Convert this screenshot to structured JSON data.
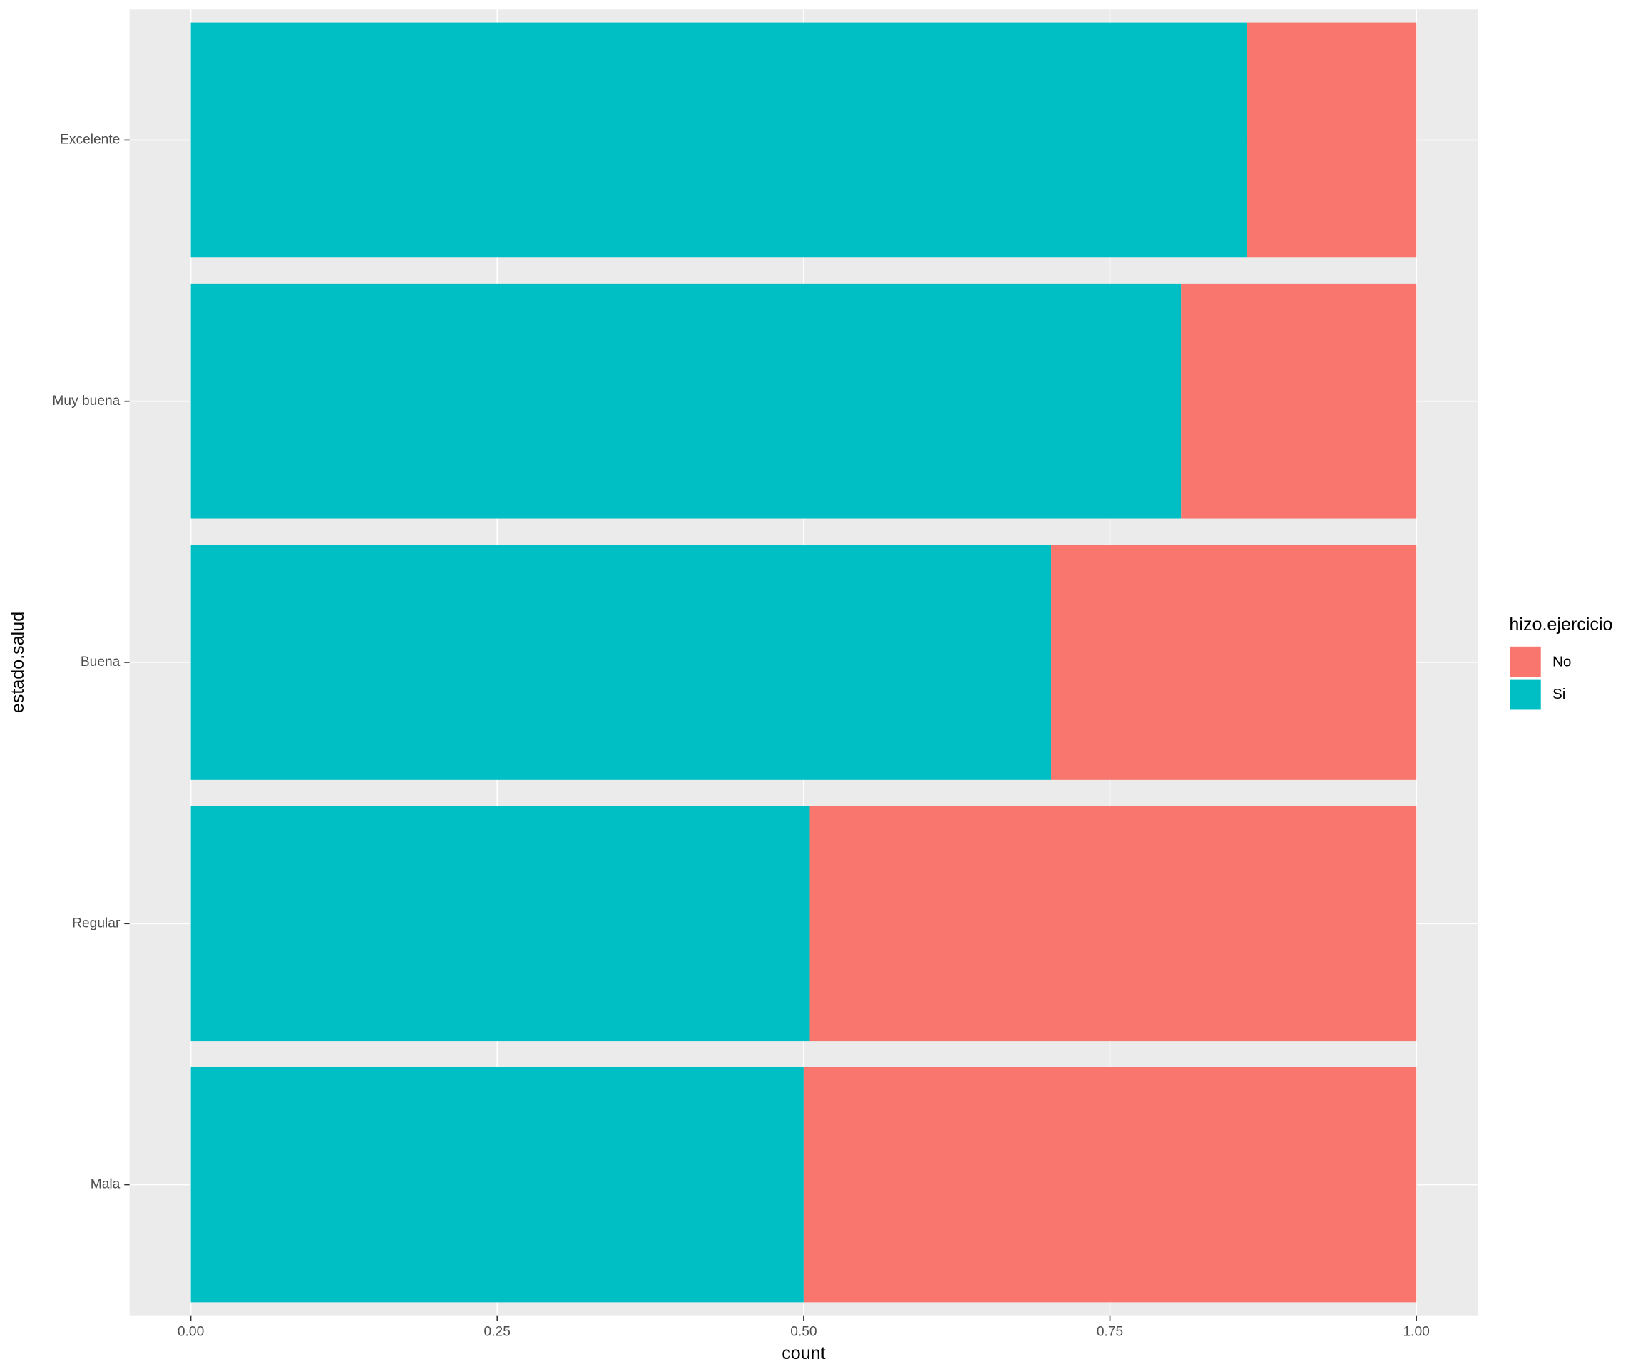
{
  "chart_data": {
    "type": "stacked_bar_horizontal",
    "x_label": "count",
    "y_label": "estado.salud",
    "categories": [
      "Excelente",
      "Muy buena",
      "Buena",
      "Regular",
      "Mala"
    ],
    "series": [
      {
        "name": "No",
        "color": "#f8766d",
        "values": [
          0.138,
          0.192,
          0.298,
          0.495,
          0.5
        ]
      },
      {
        "name": "Si",
        "color": "#00bfc4",
        "values": [
          0.862,
          0.808,
          0.702,
          0.505,
          0.5
        ]
      }
    ],
    "xlim": [
      -0.05,
      1.05
    ],
    "xticks": [
      {
        "value": 0,
        "label": "0.00"
      },
      0.25,
      {
        "value": 0.5,
        "label": "0.50"
      },
      0.75,
      {
        "value": 1,
        "label": "1.00"
      }
    ],
    "legend_title": "hizo.ejercicio",
    "legend_position": "right",
    "grid": true
  }
}
